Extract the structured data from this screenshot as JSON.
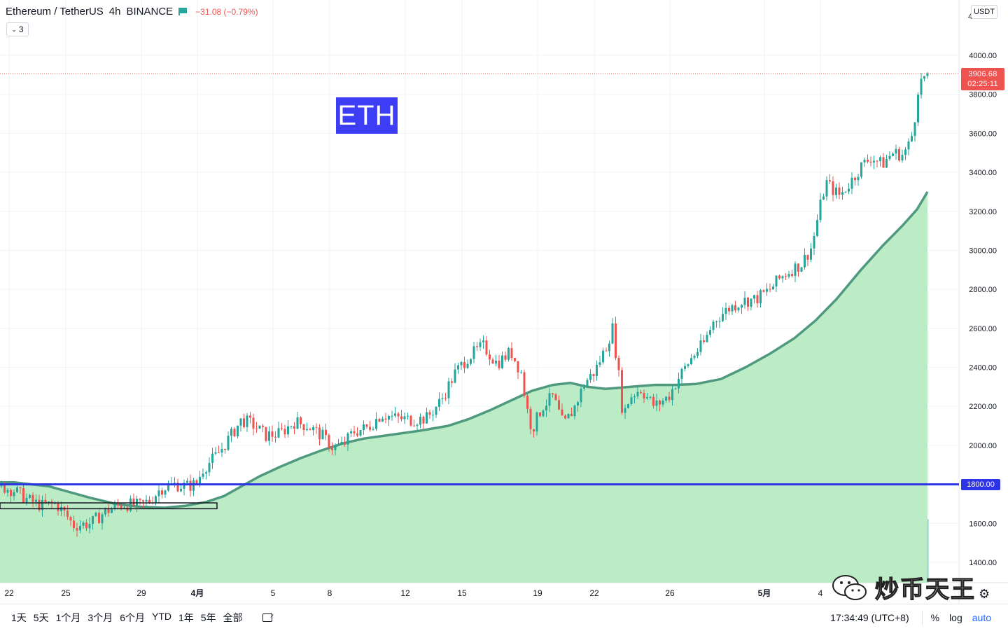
{
  "header": {
    "symbol": "Ethereum / TetherUS",
    "interval": "4h",
    "exchange": "BINANCE",
    "change": "−31.08 (−0.79%)",
    "indicator_count": "3"
  },
  "currency_button": "USDT",
  "label_box": "ETH",
  "current_price": {
    "price": "3906.68",
    "countdown": "02:25:11"
  },
  "level": {
    "price": "1800.00",
    "color": "#2d33e6"
  },
  "range_buttons": [
    "1天",
    "5天",
    "1个月",
    "3个月",
    "6个月",
    "YTD",
    "1年",
    "5年",
    "全部"
  ],
  "clock": "17:34:49 (UTC+8)",
  "right_toggles": {
    "percent": "%",
    "log": "log",
    "auto": "auto"
  },
  "watermark": "炒币天王",
  "colors": {
    "up": "#26a69a",
    "down": "#ef5350",
    "area_fill": "#bbecc6",
    "area_line": "#4f9a7e"
  },
  "chart_data": {
    "type": "candlestick",
    "title": "Ethereum / TetherUS",
    "interval": "4h",
    "ylim": [
      1280,
      4220
    ],
    "yticks": [
      4000,
      3800,
      3600,
      3400,
      3200,
      3000,
      2800,
      2600,
      2400,
      2200,
      2000,
      1800,
      1600,
      1400
    ],
    "y_tick_labels": [
      "4000.00",
      "3800.00",
      "3600.00",
      "3400.00",
      "3200.00",
      "3000.00",
      "2800.00",
      "2600.00",
      "2400.00",
      "2200.00",
      "2000.00",
      "1800.00",
      "1600.00",
      "1400.00"
    ],
    "top_partial_tick": "4",
    "x_tick_labels": [
      "22",
      "25",
      "29",
      "4月",
      "5",
      "8",
      "12",
      "15",
      "19",
      "22",
      "26",
      "5月",
      "4"
    ],
    "x_tick_positions": [
      13,
      94,
      202,
      282,
      390,
      471,
      579,
      660,
      768,
      849,
      957,
      1092,
      1172
    ],
    "x_tick_bold": [
      false,
      false,
      false,
      true,
      false,
      false,
      false,
      false,
      false,
      false,
      false,
      true,
      false
    ],
    "close_path": [
      [
        0,
        1790
      ],
      [
        20,
        1770
      ],
      [
        40,
        1720
      ],
      [
        60,
        1690
      ],
      [
        80,
        1700
      ],
      [
        95,
        1640
      ],
      [
        105,
        1590
      ],
      [
        130,
        1600
      ],
      [
        150,
        1660
      ],
      [
        175,
        1700
      ],
      [
        200,
        1690
      ],
      [
        215,
        1720
      ],
      [
        230,
        1780
      ],
      [
        250,
        1800
      ],
      [
        265,
        1790
      ],
      [
        280,
        1800
      ],
      [
        290,
        1880
      ],
      [
        310,
        1950
      ],
      [
        330,
        2050
      ],
      [
        345,
        2130
      ],
      [
        360,
        2110
      ],
      [
        380,
        2050
      ],
      [
        400,
        2060
      ],
      [
        420,
        2120
      ],
      [
        440,
        2100
      ],
      [
        460,
        2050
      ],
      [
        475,
        1990
      ],
      [
        490,
        2000
      ],
      [
        505,
        2070
      ],
      [
        525,
        2090
      ],
      [
        545,
        2160
      ],
      [
        565,
        2140
      ],
      [
        590,
        2130
      ],
      [
        610,
        2140
      ],
      [
        630,
        2230
      ],
      [
        650,
        2370
      ],
      [
        668,
        2450
      ],
      [
        690,
        2510
      ],
      [
        710,
        2420
      ],
      [
        730,
        2480
      ],
      [
        745,
        2370
      ],
      [
        752,
        2200
      ],
      [
        760,
        2080
      ],
      [
        775,
        2200
      ],
      [
        790,
        2250
      ],
      [
        805,
        2100
      ],
      [
        820,
        2190
      ],
      [
        835,
        2320
      ],
      [
        850,
        2380
      ],
      [
        865,
        2500
      ],
      [
        875,
        2600
      ],
      [
        883,
        2390
      ],
      [
        890,
        2150
      ],
      [
        900,
        2250
      ],
      [
        915,
        2290
      ],
      [
        935,
        2200
      ],
      [
        955,
        2250
      ],
      [
        970,
        2350
      ],
      [
        990,
        2460
      ],
      [
        1005,
        2520
      ],
      [
        1020,
        2640
      ],
      [
        1040,
        2700
      ],
      [
        1060,
        2740
      ],
      [
        1080,
        2750
      ],
      [
        1100,
        2800
      ],
      [
        1115,
        2860
      ],
      [
        1130,
        2900
      ],
      [
        1145,
        2930
      ],
      [
        1160,
        3020
      ],
      [
        1170,
        3200
      ],
      [
        1180,
        3350
      ],
      [
        1190,
        3310
      ],
      [
        1200,
        3280
      ],
      [
        1215,
        3350
      ],
      [
        1230,
        3430
      ],
      [
        1245,
        3480
      ],
      [
        1260,
        3440
      ],
      [
        1275,
        3500
      ],
      [
        1290,
        3490
      ],
      [
        1300,
        3550
      ],
      [
        1306,
        3640
      ],
      [
        1310,
        3820
      ],
      [
        1318,
        3880
      ],
      [
        1325,
        3906
      ]
    ],
    "area_series": [
      [
        0,
        1810
      ],
      [
        20,
        1810
      ],
      [
        45,
        1800
      ],
      [
        70,
        1790
      ],
      [
        100,
        1760
      ],
      [
        130,
        1730
      ],
      [
        165,
        1700
      ],
      [
        200,
        1685
      ],
      [
        235,
        1680
      ],
      [
        265,
        1690
      ],
      [
        295,
        1710
      ],
      [
        320,
        1740
      ],
      [
        345,
        1790
      ],
      [
        370,
        1840
      ],
      [
        400,
        1890
      ],
      [
        430,
        1935
      ],
      [
        460,
        1975
      ],
      [
        490,
        2010
      ],
      [
        520,
        2035
      ],
      [
        560,
        2055
      ],
      [
        600,
        2075
      ],
      [
        640,
        2100
      ],
      [
        670,
        2135
      ],
      [
        700,
        2180
      ],
      [
        730,
        2230
      ],
      [
        760,
        2280
      ],
      [
        790,
        2310
      ],
      [
        815,
        2320
      ],
      [
        840,
        2300
      ],
      [
        865,
        2290
      ],
      [
        900,
        2300
      ],
      [
        935,
        2310
      ],
      [
        965,
        2310
      ],
      [
        995,
        2315
      ],
      [
        1030,
        2340
      ],
      [
        1065,
        2400
      ],
      [
        1100,
        2470
      ],
      [
        1135,
        2550
      ],
      [
        1165,
        2640
      ],
      [
        1195,
        2750
      ],
      [
        1230,
        2900
      ],
      [
        1260,
        3020
      ],
      [
        1290,
        3130
      ],
      [
        1310,
        3210
      ],
      [
        1325,
        3300
      ]
    ],
    "level_line": 1800,
    "last_price": 3906.68,
    "rectangle_annotation": {
      "price_from": 1675,
      "price_to": 1705
    }
  }
}
